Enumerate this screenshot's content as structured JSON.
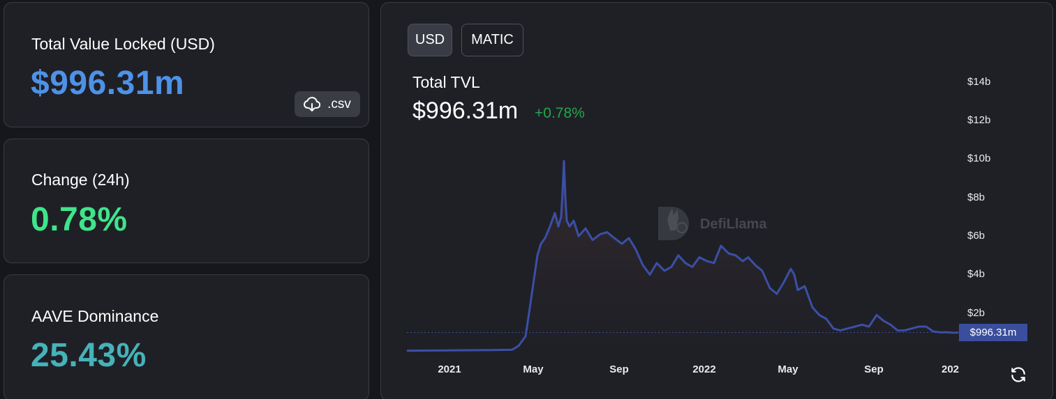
{
  "stats": {
    "tvl": {
      "label": "Total Value Locked (USD)",
      "value": "$996.31m",
      "color": "#4e92e8"
    },
    "change": {
      "label": "Change (24h)",
      "value": "0.78%",
      "color": "#3ee58a"
    },
    "dominance": {
      "label": "AAVE Dominance",
      "value": "25.43%",
      "color": "#46b2b9"
    },
    "csv_label": ".csv",
    "csv_icon": "cloud-download-icon"
  },
  "chart_panel": {
    "toggles": [
      {
        "label": "USD",
        "active": true
      },
      {
        "label": "MATIC",
        "active": false
      }
    ],
    "title": "Total TVL",
    "value": "$996.31m",
    "change": "+0.78%",
    "change_color": "#23a64a",
    "watermark": "DefiLlama",
    "current_tag": "$996.31m",
    "refresh_icon": "refresh-icon"
  },
  "chart_data": {
    "type": "area",
    "y_ticks": [
      "$14b",
      "$12b",
      "$10b",
      "$8b",
      "$6b",
      "$4b",
      "$2b"
    ],
    "y_tick_values": [
      14,
      12,
      10,
      8,
      6,
      4,
      2
    ],
    "x_ticks": [
      "2021",
      "May",
      "Sep",
      "2022",
      "May",
      "Sep",
      "202"
    ],
    "x_tick_dates": [
      "2021-01-01",
      "2021-05-01",
      "2021-09-01",
      "2022-01-01",
      "2022-05-01",
      "2022-09-01",
      "2023-01-01"
    ],
    "x_range": [
      "2020-11-01",
      "2023-01-01"
    ],
    "ylim": [
      0,
      14.5
    ],
    "line_color": "#3b4fa6",
    "series": [
      {
        "x": [
          "2020-11-01",
          "2021-03-01",
          "2021-04-01",
          "2021-04-10",
          "2021-04-20",
          "2021-04-25",
          "2021-05-01",
          "2021-05-07",
          "2021-05-12",
          "2021-05-18",
          "2021-05-25",
          "2021-06-01",
          "2021-06-06",
          "2021-06-10",
          "2021-06-12",
          "2021-06-14",
          "2021-06-16",
          "2021-06-18",
          "2021-06-22",
          "2021-06-28",
          "2021-07-05",
          "2021-07-15",
          "2021-07-25",
          "2021-08-05",
          "2021-08-15",
          "2021-08-25",
          "2021-09-05",
          "2021-09-15",
          "2021-09-25",
          "2021-10-05",
          "2021-10-15",
          "2021-10-25",
          "2021-11-05",
          "2021-11-15",
          "2021-11-25",
          "2021-12-05",
          "2021-12-15",
          "2021-12-25",
          "2022-01-05",
          "2022-01-15",
          "2022-01-25",
          "2022-02-05",
          "2022-02-15",
          "2022-02-25",
          "2022-03-05",
          "2022-03-15",
          "2022-03-25",
          "2022-04-05",
          "2022-04-15",
          "2022-04-25",
          "2022-05-05",
          "2022-05-10",
          "2022-05-15",
          "2022-05-25",
          "2022-06-05",
          "2022-06-15",
          "2022-06-25",
          "2022-07-05",
          "2022-07-15",
          "2022-07-25",
          "2022-08-05",
          "2022-08-15",
          "2022-08-25",
          "2022-09-05",
          "2022-09-15",
          "2022-09-25",
          "2022-10-05",
          "2022-10-15",
          "2022-10-25",
          "2022-11-05",
          "2022-11-15",
          "2022-11-25",
          "2022-12-05",
          "2022-12-15",
          "2022-12-25",
          "2022-12-31"
        ],
        "y": [
          0.05,
          0.08,
          0.1,
          0.3,
          0.8,
          2.0,
          3.5,
          5.0,
          5.6,
          5.9,
          6.5,
          7.2,
          6.5,
          7.0,
          8.3,
          9.9,
          8.0,
          6.8,
          6.5,
          6.8,
          6.0,
          6.4,
          5.8,
          6.1,
          6.2,
          5.9,
          5.6,
          5.9,
          5.3,
          4.5,
          4.0,
          4.6,
          4.2,
          4.4,
          5.0,
          4.6,
          4.4,
          4.9,
          4.7,
          4.6,
          5.5,
          5.1,
          5.0,
          4.7,
          4.9,
          4.5,
          4.2,
          3.3,
          3.0,
          3.6,
          4.3,
          4.0,
          3.2,
          3.4,
          2.3,
          1.9,
          1.7,
          1.2,
          1.1,
          1.2,
          1.3,
          1.4,
          1.3,
          1.9,
          1.6,
          1.4,
          1.1,
          1.1,
          1.2,
          1.3,
          1.3,
          1.05,
          1.0,
          1.0,
          0.98,
          0.996
        ]
      }
    ],
    "current_value": 0.996
  }
}
